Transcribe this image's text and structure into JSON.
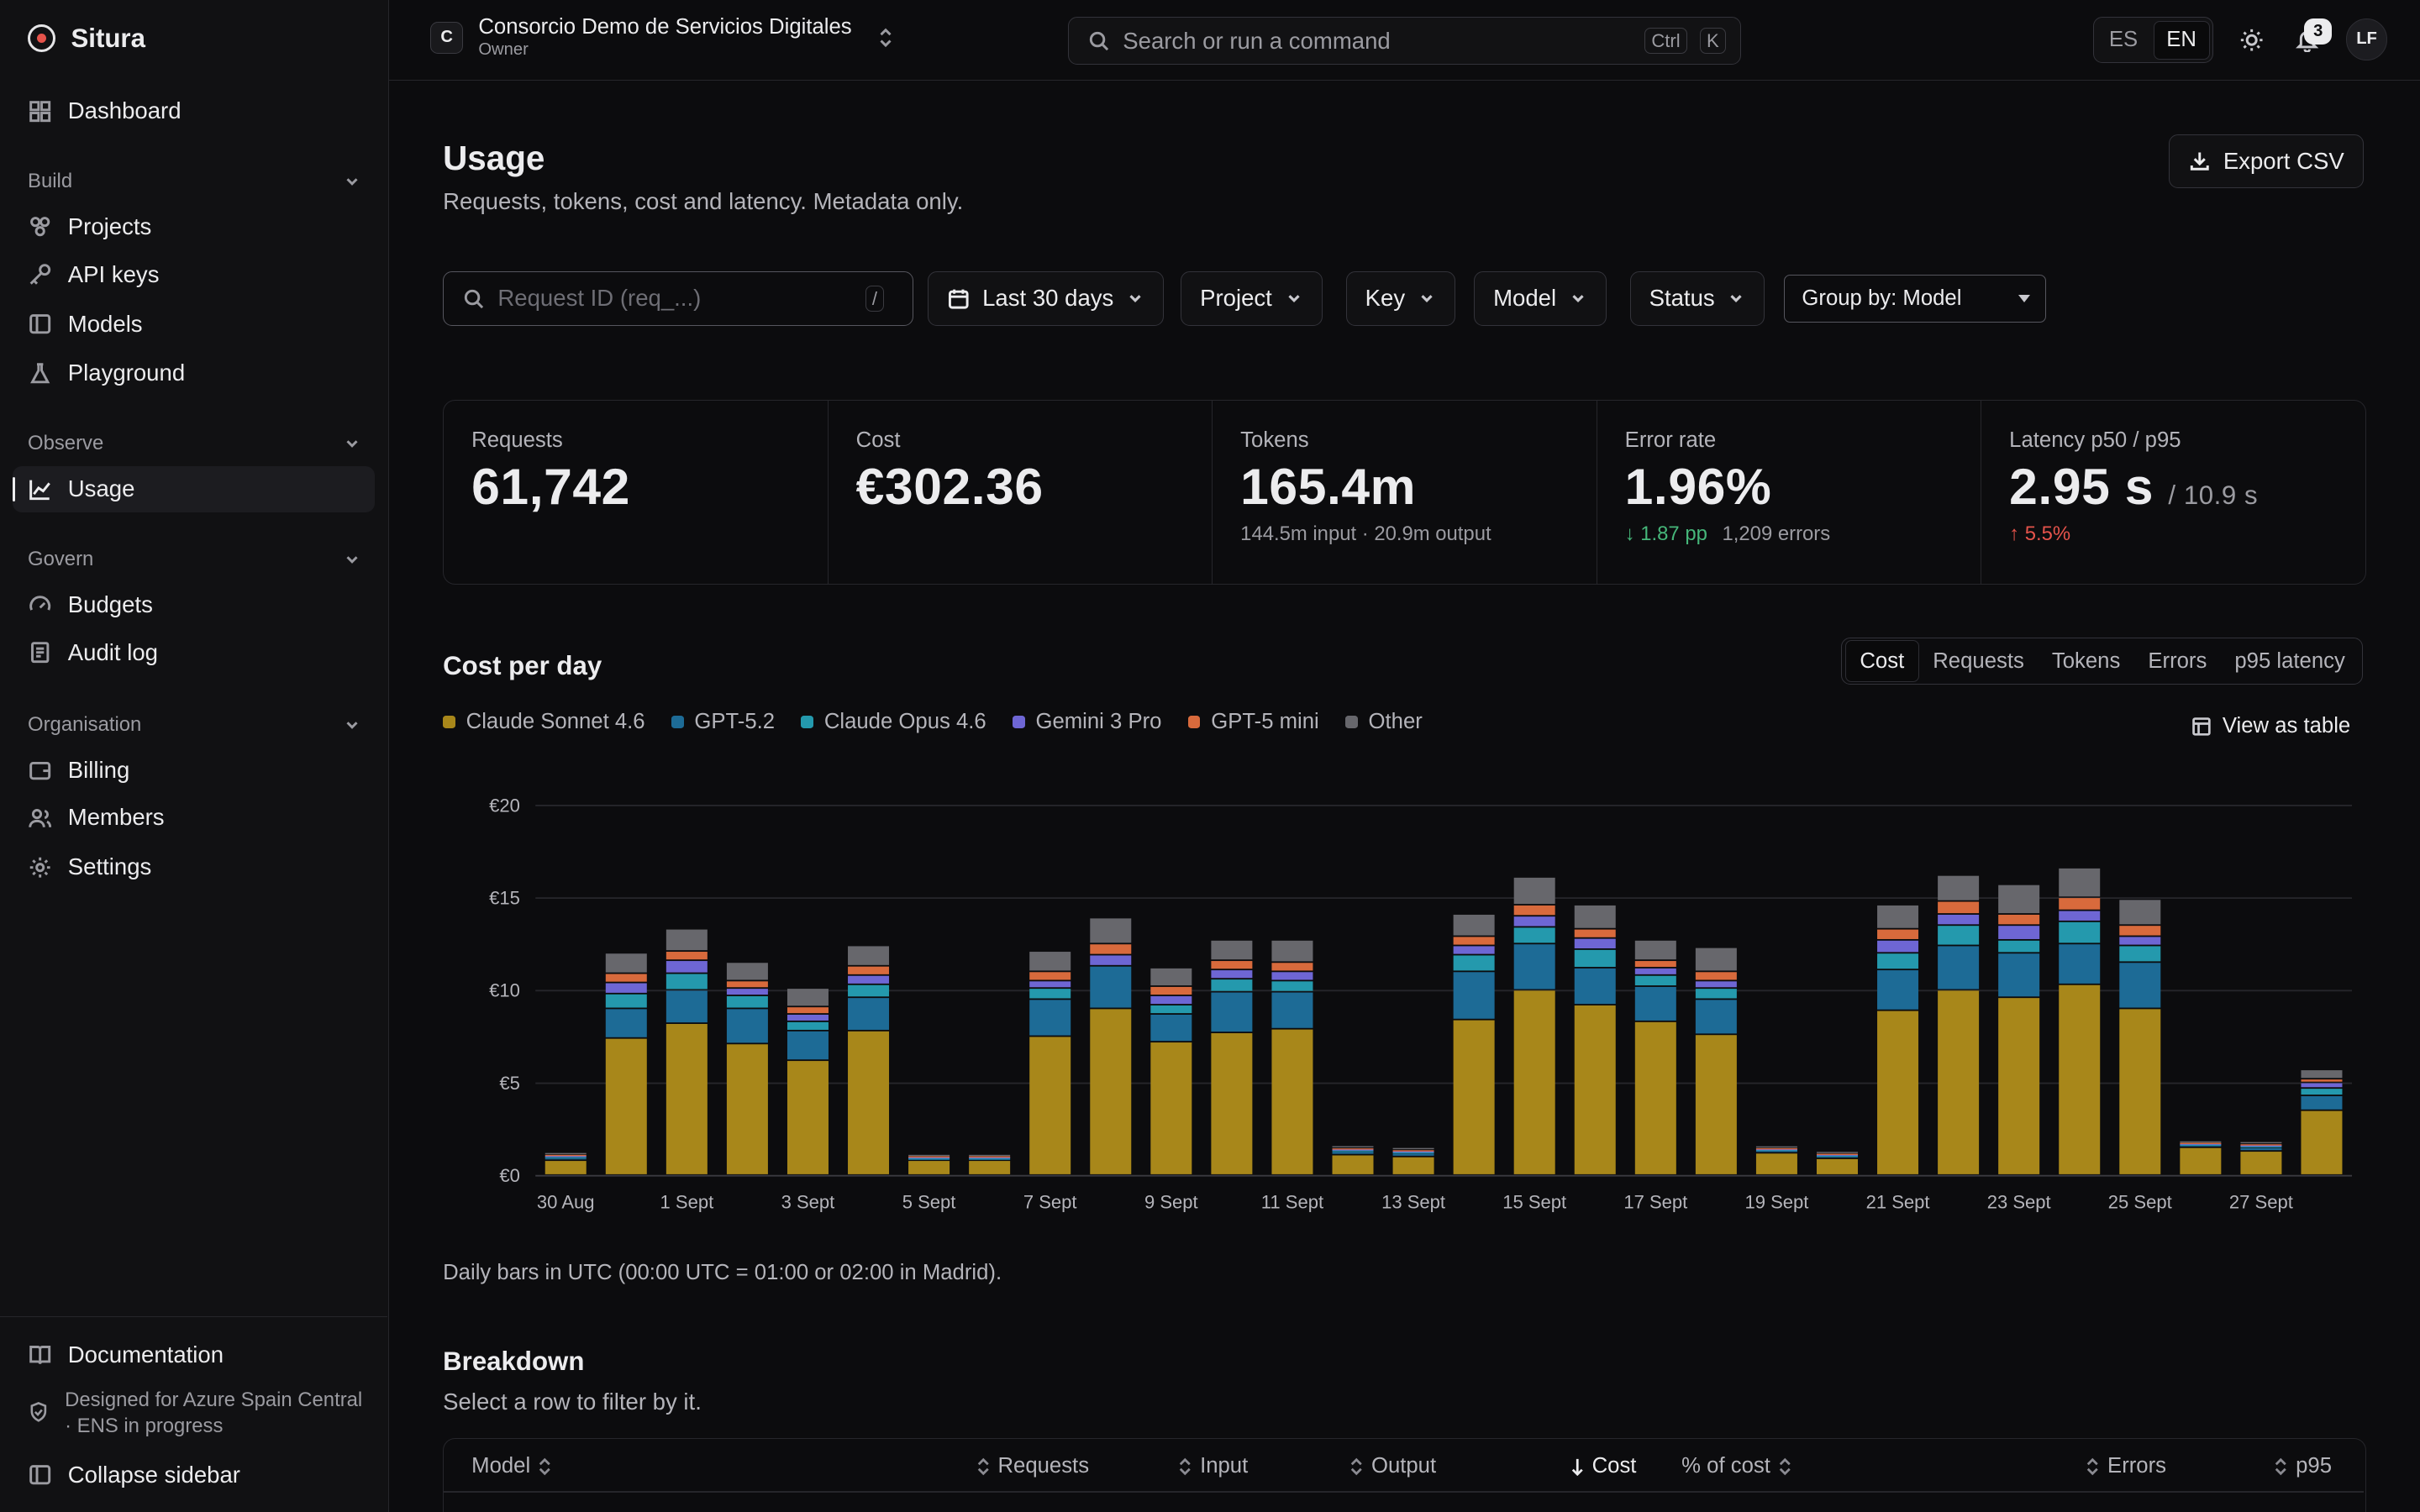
{
  "app": {
    "name": "Situra"
  },
  "sidebar": {
    "dashboard": "Dashboard",
    "groups": {
      "build": "Build",
      "observe": "Observe",
      "govern": "Govern",
      "organisation": "Organisation"
    },
    "items": {
      "projects": "Projects",
      "api_keys": "API keys",
      "models": "Models",
      "playground": "Playground",
      "usage": "Usage",
      "budgets": "Budgets",
      "audit_log": "Audit log",
      "billing": "Billing",
      "members": "Members",
      "settings": "Settings"
    },
    "documentation": "Documentation",
    "compliance_note": "Designed for Azure Spain Central · ENS in progress",
    "collapse": "Collapse sidebar"
  },
  "topbar": {
    "org_initial": "C",
    "org_name": "Consorcio Demo de Servicios Digitales",
    "org_role": "Owner",
    "search_placeholder": "Search or run a command",
    "shortcut_mod": "Ctrl",
    "shortcut_key": "K",
    "lang_es": "ES",
    "lang_en": "EN",
    "active_lang": "EN",
    "notification_count": "3",
    "user_initials": "LF"
  },
  "page": {
    "title": "Usage",
    "subtitle": "Requests, tokens, cost and latency. Metadata only.",
    "export_label": "Export CSV"
  },
  "filters": {
    "request_placeholder": "Request ID (req_...)",
    "request_shortcut": "/",
    "date_range": "Last 30 days",
    "project": "Project",
    "key": "Key",
    "model": "Model",
    "status": "Status",
    "group_by": "Group by: Model"
  },
  "stats": {
    "requests": {
      "label": "Requests",
      "value": "61,742"
    },
    "cost": {
      "label": "Cost",
      "value": "€302.36"
    },
    "tokens": {
      "label": "Tokens",
      "value": "165.4m",
      "detail": "144.5m input · 20.9m output"
    },
    "error_rate": {
      "label": "Error rate",
      "value": "1.96%",
      "delta": "1.87 pp",
      "detail": "1,209 errors"
    },
    "latency": {
      "label": "Latency p50 / p95",
      "value": "2.95 s",
      "secondary": "/ 10.9 s",
      "delta": "5.5%"
    }
  },
  "chart_section": {
    "title": "Cost per day",
    "metrics": [
      "Cost",
      "Requests",
      "Tokens",
      "Errors",
      "p95 latency"
    ],
    "active_metric": "Cost",
    "view_as_table": "View as table",
    "note": "Daily bars in UTC (00:00 UTC = 01:00 or 02:00 in Madrid)."
  },
  "colors": {
    "Claude Sonnet 4.6": "#a8871a",
    "GPT-5.2": "#1d6b96",
    "Claude Opus 4.6": "#2499ad",
    "Gemini 3 Pro": "#6e66d4",
    "GPT-5 mini": "#d86a3c",
    "Other": "#67676c"
  },
  "chart_data": {
    "type": "bar",
    "stacked": true,
    "ylim": [
      0,
      20
    ],
    "y_ticks": [
      "€0",
      "€5",
      "€10",
      "€15",
      "€20"
    ],
    "x_tick_labels": [
      "30 Aug",
      "1 Sept",
      "3 Sept",
      "5 Sept",
      "7 Sept",
      "9 Sept",
      "11 Sept",
      "13 Sept",
      "15 Sept",
      "17 Sept",
      "19 Sept",
      "21 Sept",
      "23 Sept",
      "25 Sept",
      "27 Sept"
    ],
    "categories": [
      "30 Aug",
      "31 Aug",
      "1 Sept",
      "2 Sept",
      "3 Sept",
      "4 Sept",
      "5 Sept",
      "6 Sept",
      "7 Sept",
      "8 Sept",
      "9 Sept",
      "10 Sept",
      "11 Sept",
      "12 Sept",
      "13 Sept",
      "14 Sept",
      "15 Sept",
      "16 Sept",
      "17 Sept",
      "18 Sept",
      "19 Sept",
      "20 Sept",
      "21 Sept",
      "22 Sept",
      "23 Sept",
      "24 Sept",
      "25 Sept",
      "26 Sept",
      "27 Sept",
      "28 Sept"
    ],
    "legend_position": "top-left",
    "grid": true,
    "series": [
      {
        "name": "Claude Sonnet 4.6",
        "values": [
          0.8,
          7.4,
          8.2,
          7.1,
          6.2,
          7.8,
          0.8,
          0.8,
          7.5,
          9.0,
          7.2,
          7.7,
          7.9,
          1.1,
          1.0,
          8.4,
          10.0,
          9.2,
          8.3,
          7.6,
          1.2,
          0.9,
          8.9,
          10.0,
          9.6,
          10.3,
          9.0,
          1.5,
          1.3,
          3.5
        ]
      },
      {
        "name": "GPT-5.2",
        "values": [
          0.15,
          1.6,
          1.8,
          1.9,
          1.6,
          1.8,
          0.12,
          0.12,
          2.0,
          2.3,
          1.5,
          2.2,
          2.0,
          0.2,
          0.2,
          2.6,
          2.5,
          2.0,
          1.9,
          1.9,
          0.15,
          0.15,
          2.2,
          2.4,
          2.4,
          2.2,
          2.5,
          0.15,
          0.2,
          0.8
        ]
      },
      {
        "name": "Claude Opus 4.6",
        "values": [
          0.08,
          0.8,
          0.9,
          0.7,
          0.5,
          0.7,
          0.05,
          0.05,
          0.6,
          0.0,
          0.5,
          0.7,
          0.6,
          0.08,
          0.08,
          0.9,
          0.9,
          1.0,
          0.6,
          0.6,
          0.06,
          0.06,
          0.9,
          1.1,
          0.7,
          1.2,
          0.9,
          0.05,
          0.1,
          0.4
        ]
      },
      {
        "name": "Gemini 3 Pro",
        "values": [
          0.05,
          0.6,
          0.7,
          0.4,
          0.4,
          0.5,
          0.04,
          0.04,
          0.4,
          0.6,
          0.5,
          0.5,
          0.5,
          0.05,
          0.05,
          0.5,
          0.6,
          0.6,
          0.4,
          0.4,
          0.04,
          0.04,
          0.7,
          0.6,
          0.8,
          0.6,
          0.5,
          0.04,
          0.05,
          0.3
        ]
      },
      {
        "name": "GPT-5 mini",
        "values": [
          0.05,
          0.5,
          0.5,
          0.4,
          0.4,
          0.5,
          0.04,
          0.04,
          0.5,
          0.6,
          0.5,
          0.5,
          0.5,
          0.05,
          0.05,
          0.5,
          0.6,
          0.5,
          0.4,
          0.5,
          0.04,
          0.04,
          0.6,
          0.7,
          0.6,
          0.7,
          0.6,
          0.04,
          0.05,
          0.2
        ]
      },
      {
        "name": "Other",
        "values": [
          0.1,
          1.1,
          1.2,
          1.0,
          1.0,
          1.1,
          0.08,
          0.08,
          1.1,
          1.4,
          1.0,
          1.1,
          1.2,
          0.12,
          0.12,
          1.2,
          1.5,
          1.3,
          1.1,
          1.3,
          0.1,
          0.1,
          1.3,
          1.4,
          1.6,
          1.6,
          1.4,
          0.08,
          0.12,
          0.5
        ]
      }
    ]
  },
  "breakdown": {
    "title": "Breakdown",
    "subtitle": "Select a row to filter by it.",
    "columns": [
      "Model",
      "Requests",
      "Input",
      "Output",
      "Cost",
      "% of cost",
      "Errors",
      "p95"
    ],
    "sorted_column": "Cost"
  }
}
